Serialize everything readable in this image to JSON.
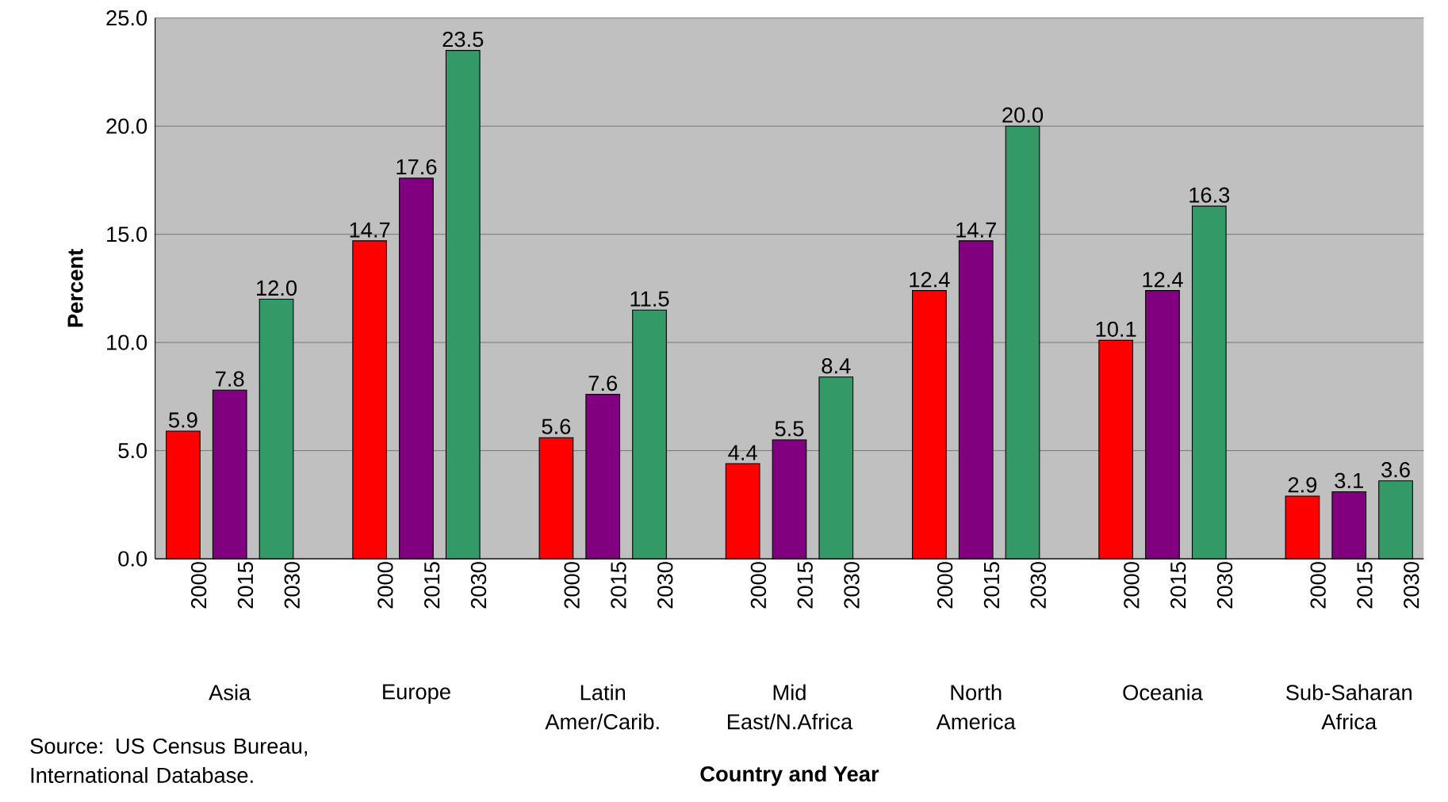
{
  "chart_data": {
    "type": "bar",
    "xlabel": "Country and Year",
    "ylabel": "Percent",
    "categories": [
      "Asia",
      "Europe",
      "Latin Amer/Carib.",
      "Mid East/N.Africa",
      "North America",
      "Oceania",
      "Sub-Saharan Africa"
    ],
    "series": [
      {
        "name": "2000",
        "color": "#ff0000",
        "values": [
          5.9,
          14.7,
          5.6,
          4.4,
          12.4,
          10.1,
          2.9
        ],
        "value_labels": [
          "5.9",
          "14.7",
          "5.6",
          "4.4",
          "12.4",
          "10.1",
          "2.9"
        ]
      },
      {
        "name": "2015",
        "color": "#800080",
        "values": [
          7.8,
          17.6,
          7.6,
          5.5,
          14.7,
          12.4,
          3.1
        ],
        "value_labels": [
          "7.8",
          "17.6",
          "7.6",
          "5.5",
          "14.7",
          "12.4",
          "3.1"
        ]
      },
      {
        "name": "2030",
        "color": "#339966",
        "values": [
          12.0,
          23.5,
          11.5,
          8.4,
          20.0,
          16.3,
          3.6
        ],
        "value_labels": [
          "12.0",
          "23.5",
          "11.5",
          "8.4",
          "20.0",
          "16.3",
          "3.6"
        ]
      }
    ],
    "ylim": [
      0,
      25
    ],
    "yticks": [
      {
        "value": 0,
        "label": "0.0"
      },
      {
        "value": 5,
        "label": "5.0"
      },
      {
        "value": 10,
        "label": "10.0"
      },
      {
        "value": 15,
        "label": "15.0"
      },
      {
        "value": 20,
        "label": "20.0"
      },
      {
        "value": 25,
        "label": "25.0"
      }
    ],
    "grid": "y",
    "annotations": [
      "Source: US Census Bureau, International Database."
    ]
  }
}
